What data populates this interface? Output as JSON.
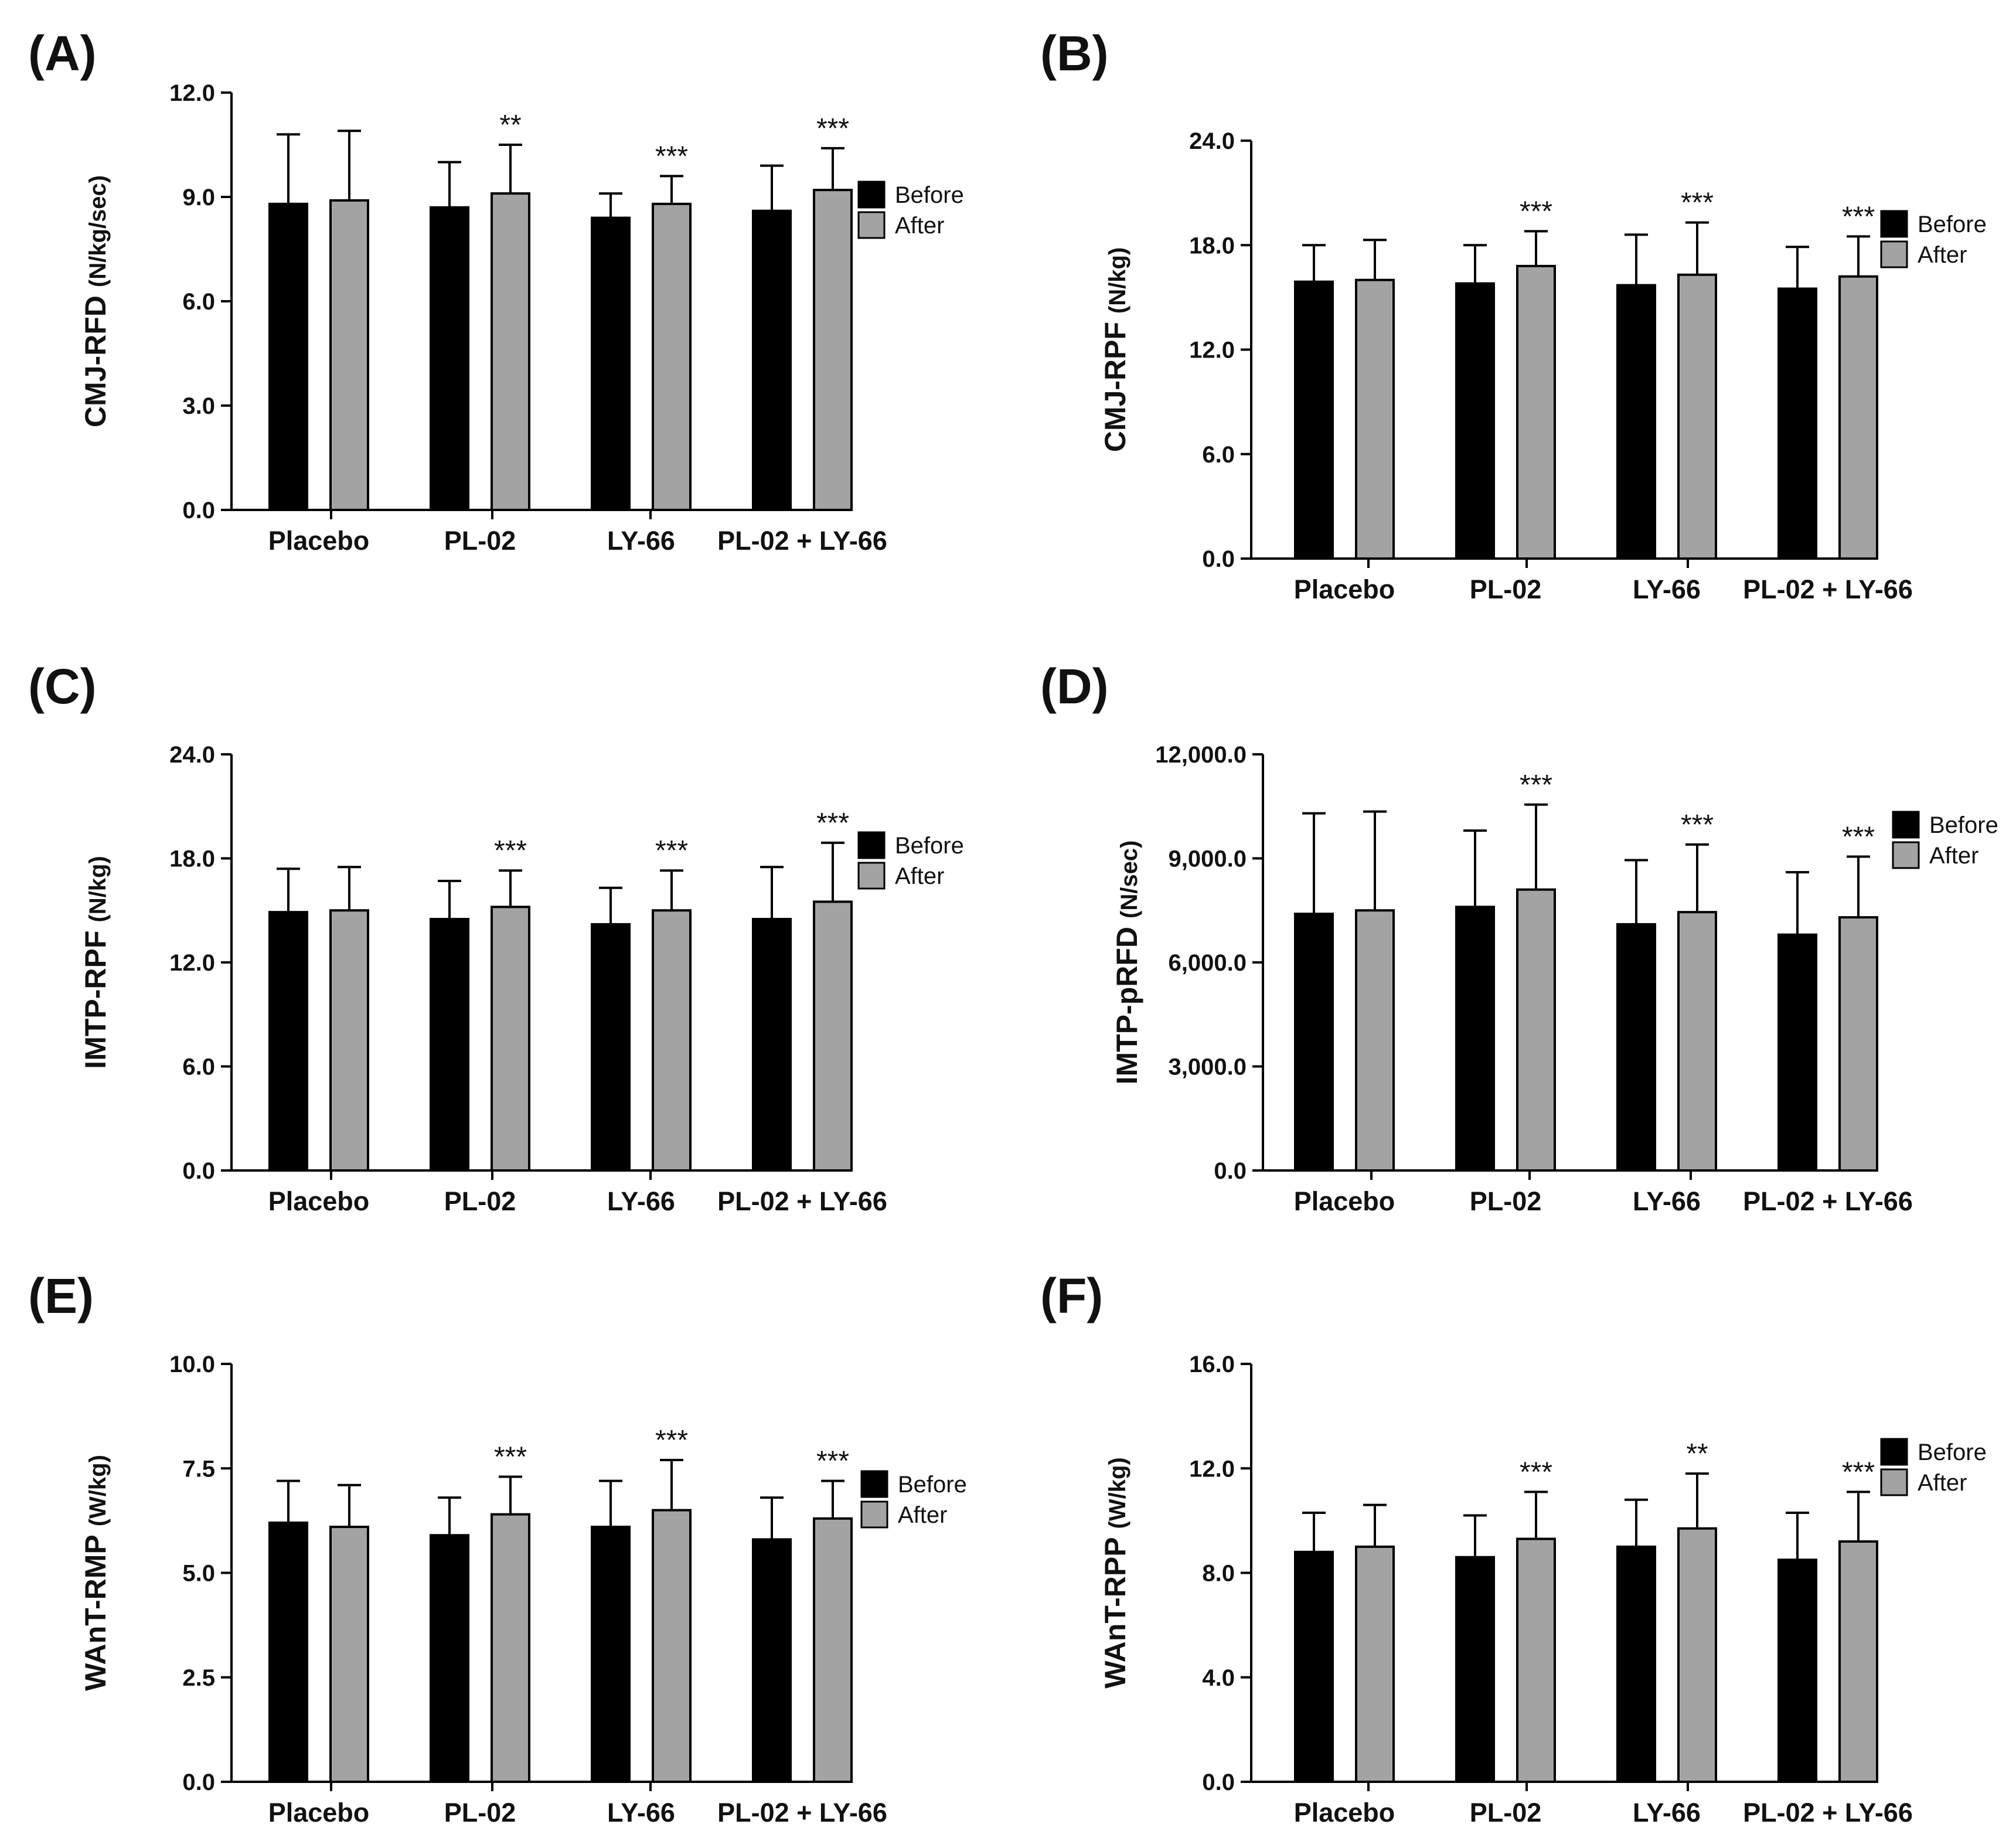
{
  "colors": {
    "before": "#000000",
    "after": "#a3a3a3",
    "stroke": "#000000"
  },
  "legend": {
    "before": "Before",
    "after": "After"
  },
  "chart_data": [
    {
      "panel": "(A)",
      "type": "bar",
      "ylabel": "CMJ-RFD",
      "yunit": "(N/kg/sec)",
      "ylim": [
        0,
        12
      ],
      "yticks": [
        "0.0",
        "3.0",
        "6.0",
        "9.0",
        "12.0"
      ],
      "categories": [
        "Placebo",
        "PL-02",
        "LY-66",
        "PL-02 + LY-66"
      ],
      "series": [
        {
          "name": "Before",
          "values": [
            8.8,
            8.7,
            8.4,
            8.6
          ],
          "errors": [
            2.0,
            1.3,
            0.7,
            1.3
          ]
        },
        {
          "name": "After",
          "values": [
            8.9,
            9.1,
            8.8,
            9.2
          ],
          "errors": [
            2.0,
            1.4,
            0.8,
            1.2
          ]
        }
      ],
      "significance": [
        "",
        "**",
        "***",
        "***"
      ]
    },
    {
      "panel": "(B)",
      "type": "bar",
      "ylabel": "CMJ-RPF",
      "yunit": "(N/kg)",
      "ylim": [
        0,
        24
      ],
      "yticks": [
        "0.0",
        "6.0",
        "12.0",
        "18.0",
        "24.0"
      ],
      "categories": [
        "Placebo",
        "PL-02",
        "LY-66",
        "PL-02 + LY-66"
      ],
      "series": [
        {
          "name": "Before",
          "values": [
            15.9,
            15.8,
            15.7,
            15.5
          ],
          "errors": [
            2.1,
            2.2,
            2.9,
            2.4
          ]
        },
        {
          "name": "After",
          "values": [
            16.0,
            16.8,
            16.3,
            16.2
          ],
          "errors": [
            2.3,
            2.0,
            3.0,
            2.3
          ]
        }
      ],
      "significance": [
        "",
        "***",
        "***",
        "***"
      ]
    },
    {
      "panel": "(C)",
      "type": "bar",
      "ylabel": "IMTP-RPF",
      "yunit": "(N/kg)",
      "ylim": [
        0,
        24
      ],
      "yticks": [
        "0.0",
        "6.0",
        "12.0",
        "18.0",
        "24.0"
      ],
      "categories": [
        "Placebo",
        "PL-02",
        "LY-66",
        "PL-02 + LY-66"
      ],
      "series": [
        {
          "name": "Before",
          "values": [
            14.9,
            14.5,
            14.2,
            14.5
          ],
          "errors": [
            2.5,
            2.2,
            2.1,
            3.0
          ]
        },
        {
          "name": "After",
          "values": [
            15.0,
            15.2,
            15.0,
            15.5
          ],
          "errors": [
            2.5,
            2.1,
            2.3,
            3.4
          ]
        }
      ],
      "significance": [
        "",
        "***",
        "***",
        "***"
      ]
    },
    {
      "panel": "(D)",
      "type": "bar",
      "ylabel": "IMTP-pRFD",
      "yunit": "(N/sec)",
      "ylim": [
        0,
        12000
      ],
      "yticks": [
        "0.0",
        "3,000.0",
        "6,000.0",
        "9,000.0",
        "12,000.0"
      ],
      "categories": [
        "Placebo",
        "PL-02",
        "LY-66",
        "PL-02 + LY-66"
      ],
      "series": [
        {
          "name": "Before",
          "values": [
            7400,
            7600,
            7100,
            6800
          ],
          "errors": [
            2900,
            2200,
            1850,
            1800
          ]
        },
        {
          "name": "After",
          "values": [
            7500,
            8100,
            7450,
            7300
          ],
          "errors": [
            2850,
            2450,
            1950,
            1750
          ]
        }
      ],
      "significance": [
        "",
        "***",
        "***",
        "***"
      ]
    },
    {
      "panel": "(E)",
      "type": "bar",
      "ylabel": "WAnT-RMP",
      "yunit": "(W/kg)",
      "ylim": [
        0,
        10
      ],
      "yticks": [
        "0.0",
        "2.5",
        "5.0",
        "7.5",
        "10.0"
      ],
      "categories": [
        "Placebo",
        "PL-02",
        "LY-66",
        "PL-02 + LY-66"
      ],
      "series": [
        {
          "name": "Before",
          "values": [
            6.2,
            5.9,
            6.1,
            5.8
          ],
          "errors": [
            1.0,
            0.9,
            1.1,
            1.0
          ]
        },
        {
          "name": "After",
          "values": [
            6.1,
            6.4,
            6.5,
            6.3
          ],
          "errors": [
            1.0,
            0.9,
            1.2,
            0.9
          ]
        }
      ],
      "significance": [
        "",
        "***",
        "***",
        "***"
      ]
    },
    {
      "panel": "(F)",
      "type": "bar",
      "ylabel": "WAnT-RPP",
      "yunit": "(W/kg)",
      "ylim": [
        0,
        16
      ],
      "yticks": [
        "0.0",
        "4.0",
        "8.0",
        "12.0",
        "16.0"
      ],
      "categories": [
        "Placebo",
        "PL-02",
        "LY-66",
        "PL-02 + LY-66"
      ],
      "series": [
        {
          "name": "Before",
          "values": [
            8.8,
            8.6,
            9.0,
            8.5
          ],
          "errors": [
            1.5,
            1.6,
            1.8,
            1.8
          ]
        },
        {
          "name": "After",
          "values": [
            9.0,
            9.3,
            9.7,
            9.2
          ],
          "errors": [
            1.6,
            1.8,
            2.1,
            1.9
          ]
        }
      ],
      "significance": [
        "",
        "***",
        "**",
        "***"
      ]
    }
  ]
}
